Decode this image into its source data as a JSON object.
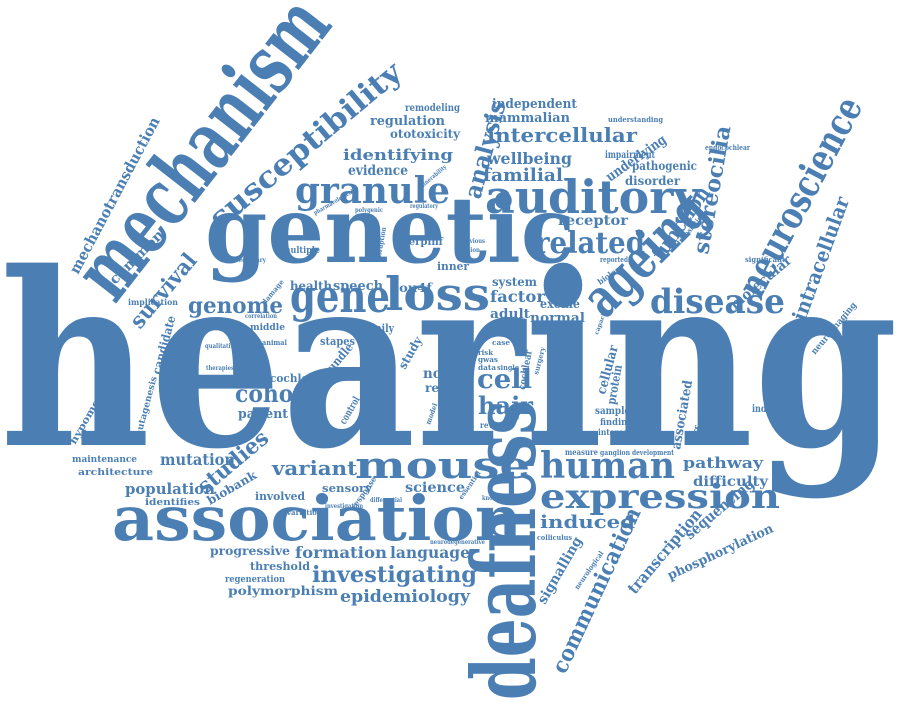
{
  "word_cloud": {
    "color": "#4b7fb3",
    "words": [
      "hearing",
      "deafness",
      "genetic",
      "mechanism",
      "association",
      "ageing",
      "auditory",
      "loss",
      "gene",
      "mouse",
      "human",
      "expression",
      "neuroscience",
      "susceptibility",
      "granule",
      "related",
      "disease",
      "stereocilia",
      "analysis",
      "mechanotransduction",
      "communication",
      "cohort",
      "hair",
      "cell",
      "investigating",
      "intercellular",
      "epidemiology",
      "language",
      "formation",
      "survival",
      "studies",
      "genome",
      "variant",
      "function",
      "mutation",
      "population",
      "intracellular",
      "molecular",
      "induced",
      "pathway",
      "difficulty",
      "sequencing",
      "transcription",
      "phosphorylation",
      "signalling",
      "evidence",
      "identifying",
      "familial",
      "wellbeing",
      "independent",
      "mammalian",
      "regulation",
      "ototoxicity",
      "remodeling",
      "receptor",
      "underlying",
      "pathogenic",
      "disorder",
      "impairment",
      "science",
      "sensory",
      "progressive",
      "threshold",
      "regeneration",
      "polymorphism",
      "biobank",
      "involved",
      "identifies",
      "architecture",
      "maintenance",
      "hypometabolism",
      "mutagenesis",
      "candidate",
      "common",
      "implication",
      "factor",
      "adult",
      "exome",
      "normal",
      "system",
      "speech",
      "health",
      "inner",
      "pou4f",
      "serpinf",
      "multiple",
      "stereociliary",
      "noise",
      "str",
      "result",
      "study",
      "bundle",
      "stapes",
      "cochlea",
      "patient",
      "middle",
      "associated",
      "difference",
      "cellular",
      "protein",
      "sample",
      "finding",
      "interest",
      "alzheimer",
      "neuroimaging",
      "individual",
      "significant",
      "reported",
      "biology",
      "translation",
      "endocochlear",
      "understanding",
      "measure",
      "ganglion",
      "development",
      "colliculus",
      "neurological",
      "neurodegenerative",
      "essential",
      "control",
      "target",
      "cochlear",
      "response",
      "variation",
      "reveal",
      "surgery",
      "risk",
      "data",
      "single",
      "case",
      "gwas",
      "knowledge",
      "animal",
      "qualitative",
      "therapies",
      "polygenic",
      "vulnerability",
      "pharmacological",
      "regulatory",
      "previous",
      "region",
      "correlation",
      "capacity",
      "disruption",
      "damage",
      "model",
      "family",
      "aged",
      "differential",
      "investigation"
    ]
  }
}
